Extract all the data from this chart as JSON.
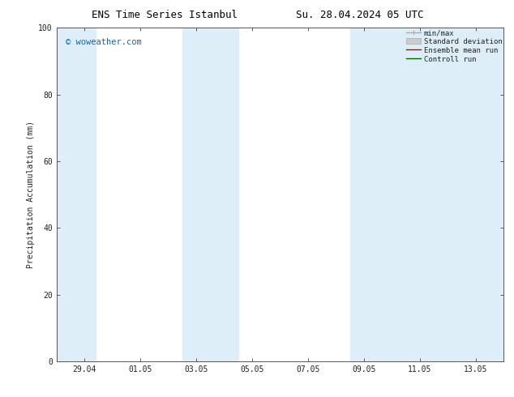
{
  "title_left": "ENS Time Series Istanbul",
  "title_right": "Su. 28.04.2024 05 UTC",
  "ylabel": "Precipitation Accumulation (mm)",
  "ylim": [
    0,
    100
  ],
  "yticks": [
    0,
    20,
    40,
    60,
    80,
    100
  ],
  "bg_color": "#ffffff",
  "plot_bg_color": "#ffffff",
  "watermark": "© woweather.com",
  "watermark_color": "#1166bb",
  "shaded_color": "#ddeef8",
  "x_num_start": 0,
  "x_num_end": 16,
  "x_tick_positions": [
    1,
    3,
    5,
    7,
    9,
    11,
    13,
    15
  ],
  "x_tick_labels": [
    "29.04",
    "01.05",
    "03.05",
    "05.05",
    "07.05",
    "09.05",
    "11.05",
    "13.05"
  ],
  "shaded_regions": [
    {
      "xmin": 0.0,
      "xmax": 1.4
    },
    {
      "xmin": 4.5,
      "xmax": 6.5
    },
    {
      "xmin": 10.5,
      "xmax": 16.0
    }
  ],
  "font_size_title": 9,
  "font_size_axis_label": 7,
  "font_size_ticks": 7,
  "font_size_legend": 6.5,
  "font_size_watermark": 7.5,
  "axis_color": "#222222",
  "spine_color": "#555555"
}
